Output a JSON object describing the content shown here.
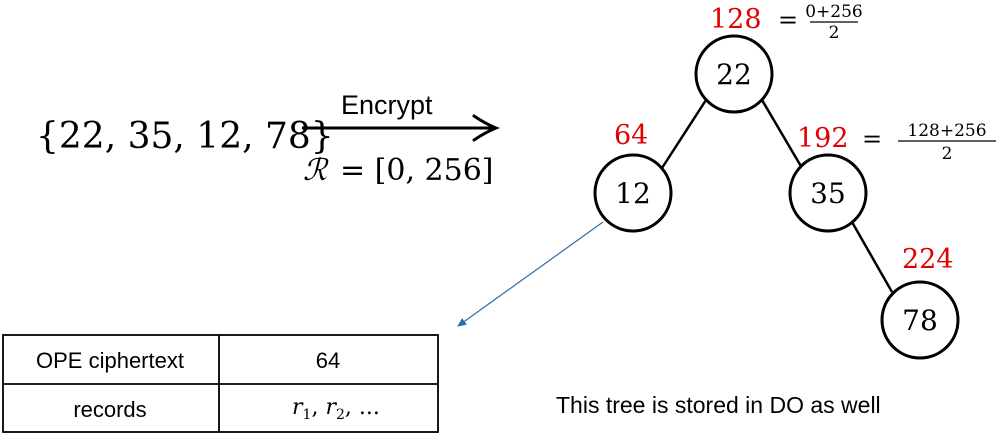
{
  "input_set": "{22, 35, 12, 78}",
  "arrow": {
    "label": "Encrypt",
    "range_symbol": "ℛ",
    "range_rest": "= [0, 256]"
  },
  "tree": {
    "nodes": [
      {
        "key": "22",
        "ope": "128"
      },
      {
        "key": "12",
        "ope": "64"
      },
      {
        "key": "35",
        "ope": "192"
      },
      {
        "key": "78",
        "ope": "224"
      }
    ],
    "formulas": {
      "root": {
        "eq": "=",
        "num": "0+256",
        "den": "2"
      },
      "right": {
        "eq": "=",
        "num": "128+256",
        "den": "2"
      }
    }
  },
  "table": {
    "rows": [
      {
        "label": "OPE ciphertext",
        "value": "64"
      },
      {
        "label": "records",
        "value_main_1": "r",
        "sub_1": "1",
        "sep": ", ",
        "value_main_2": "r",
        "sub_2": "2",
        "tail": ", ..."
      }
    ]
  },
  "caption": "This tree is stored in DO as well",
  "colors": {
    "ope_label": "#e00000",
    "pointer_arrow": "#2e6da4",
    "ink": "#000000"
  }
}
